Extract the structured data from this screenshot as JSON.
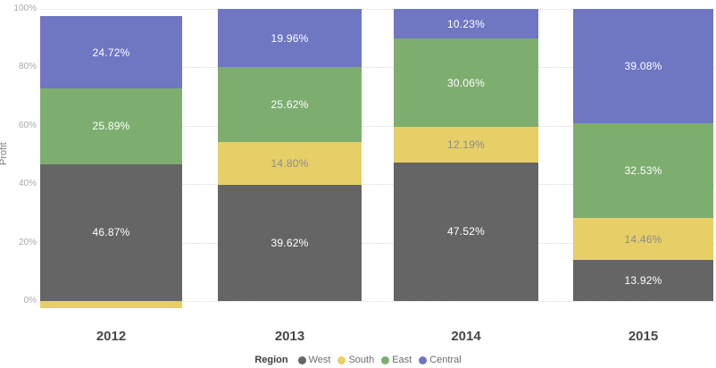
{
  "chart_data": {
    "type": "bar",
    "subtype": "stacked-100-percent-column",
    "title": "",
    "xlabel": "",
    "ylabel": "Profit",
    "legend_title": "Region",
    "legend_position": "bottom-center",
    "grid": "horizontal-dotted",
    "ylim": [
      0,
      100
    ],
    "y_ticks": [
      "0%",
      "20%",
      "40%",
      "60%",
      "80%",
      "100%"
    ],
    "categories": [
      "2012",
      "2013",
      "2014",
      "2015"
    ],
    "series": [
      {
        "name": "West",
        "color": "#656565",
        "label_color": "#ffffff",
        "values": [
          46.87,
          39.62,
          47.52,
          13.92
        ],
        "labels": [
          "46.87%",
          "39.62%",
          "47.52%",
          "13.92%"
        ]
      },
      {
        "name": "South",
        "color": "#e6cf66",
        "label_color": "#8c8c8c",
        "values": [
          -2.52,
          14.8,
          12.19,
          14.46
        ],
        "labels": [
          null,
          "14.80%",
          "12.19%",
          "14.46%"
        ]
      },
      {
        "name": "East",
        "color": "#7ead70",
        "label_color": "#ffffff",
        "values": [
          25.89,
          25.62,
          30.06,
          32.53
        ],
        "labels": [
          "25.89%",
          "25.62%",
          "30.06%",
          "32.53%"
        ]
      },
      {
        "name": "Central",
        "color": "#6f76c2",
        "label_color": "#ffffff",
        "values": [
          24.72,
          19.96,
          10.23,
          39.08
        ],
        "labels": [
          "24.72%",
          "19.96%",
          "10.23%",
          "39.08%"
        ]
      }
    ]
  }
}
